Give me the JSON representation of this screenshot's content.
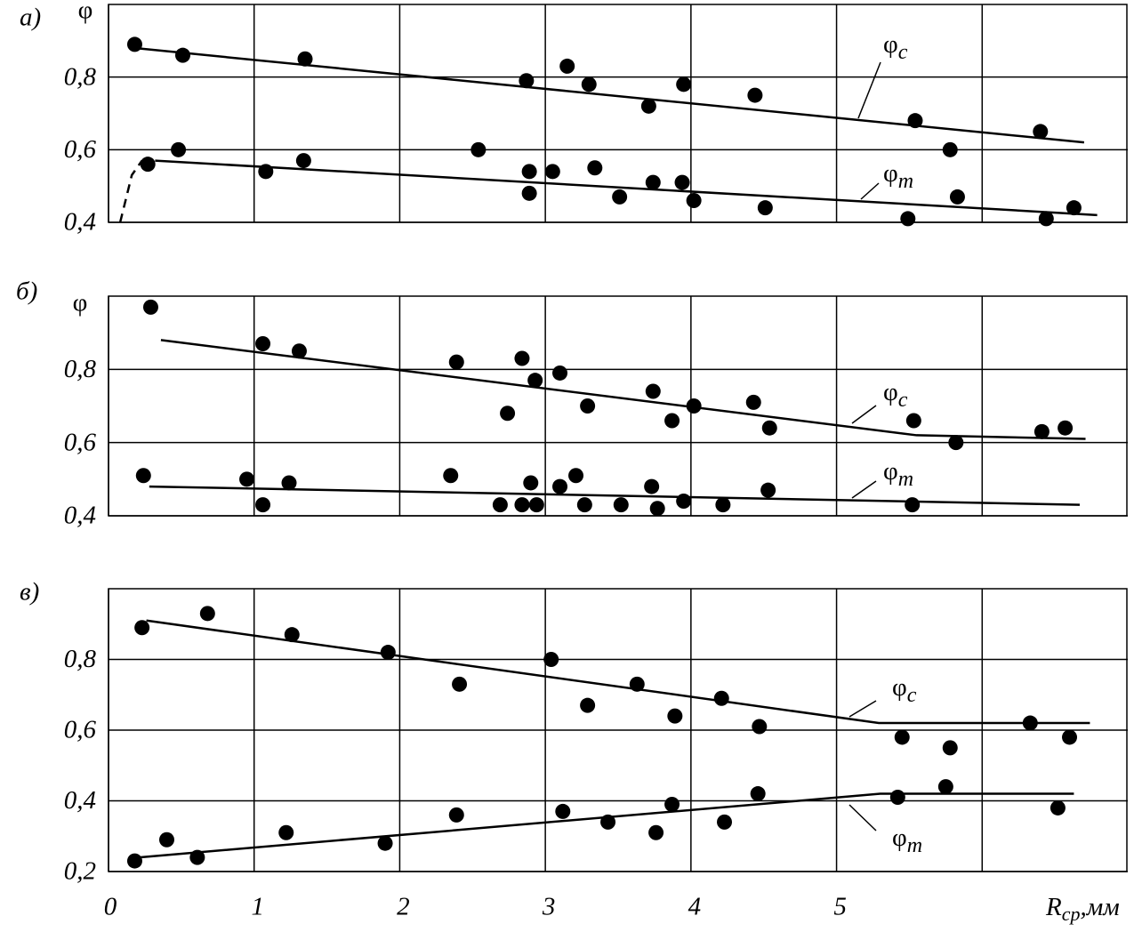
{
  "chart_data": [
    {
      "type": "scatter",
      "panel_label": "а)",
      "ylabel": "φ",
      "xlim": [
        0,
        7
      ],
      "xticks": [
        0,
        1,
        2,
        3,
        4,
        5,
        {
          "value": 6,
          "label": null
        }
      ],
      "ylim": [
        0.4,
        1.0
      ],
      "yticks": [
        {
          "value": 0.4,
          "label": "0,4"
        },
        {
          "value": 0.6,
          "label": "0,6"
        },
        {
          "value": 0.8,
          "label": "0,8"
        }
      ],
      "grid": true,
      "series": [
        {
          "name": "φ",
          "subscript": "c",
          "color": "#000000",
          "x": [
            0.18,
            0.51,
            1.35,
            2.87,
            3.15,
            3.3,
            3.71,
            3.95,
            4.44,
            5.54,
            5.78,
            6.4
          ],
          "values": [
            0.89,
            0.86,
            0.85,
            0.79,
            0.83,
            0.78,
            0.72,
            0.78,
            0.75,
            0.68,
            0.6,
            0.65
          ],
          "trend": {
            "x": [
              0.18,
              6.7
            ],
            "values": [
              0.88,
              0.62
            ]
          }
        },
        {
          "name": "φ",
          "subscript": "m",
          "color": "#000000",
          "x": [
            0.27,
            0.48,
            1.08,
            1.34,
            2.54,
            2.89,
            2.89,
            3.05,
            3.34,
            3.51,
            3.74,
            3.94,
            4.02,
            4.51,
            5.49,
            5.83,
            6.44,
            6.63
          ],
          "values": [
            0.56,
            0.6,
            0.54,
            0.57,
            0.6,
            0.54,
            0.48,
            0.54,
            0.55,
            0.47,
            0.51,
            0.51,
            0.46,
            0.44,
            0.41,
            0.47,
            0.41,
            0.44
          ],
          "trend": {
            "x": [
              0.32,
              6.79
            ],
            "values": [
              0.57,
              0.42
            ]
          },
          "dashed": {
            "x": [
              0.08,
              0.16,
              0.23
            ],
            "values": [
              0.4,
              0.53,
              0.57
            ]
          }
        }
      ]
    },
    {
      "type": "scatter",
      "panel_label": "б)",
      "ylabel": "φ",
      "xlim": [
        0,
        7
      ],
      "xticks": [
        0,
        1,
        2,
        3,
        4,
        5,
        {
          "value": 6,
          "label": null
        }
      ],
      "ylim": [
        0.4,
        1.0
      ],
      "yticks": [
        {
          "value": 0.4,
          "label": "0,4"
        },
        {
          "value": 0.6,
          "label": "0,6"
        },
        {
          "value": 0.8,
          "label": "0,8"
        }
      ],
      "grid": true,
      "series": [
        {
          "name": "φ",
          "subscript": "c",
          "color": "#000000",
          "x": [
            0.29,
            1.06,
            1.31,
            2.39,
            2.74,
            2.84,
            2.93,
            3.1,
            3.29,
            3.74,
            3.87,
            4.02,
            4.43,
            4.54,
            5.53,
            5.82,
            6.41,
            6.57
          ],
          "values": [
            0.97,
            0.87,
            0.85,
            0.82,
            0.68,
            0.83,
            0.77,
            0.79,
            0.7,
            0.74,
            0.66,
            0.7,
            0.71,
            0.64,
            0.66,
            0.6,
            0.63,
            0.64
          ],
          "trend": {
            "x": [
              0.36,
              5.55,
              6.71
            ],
            "values": [
              0.88,
              0.62,
              0.61
            ]
          }
        },
        {
          "name": "φ",
          "subscript": "m",
          "color": "#000000",
          "x": [
            0.24,
            0.95,
            1.06,
            1.24,
            2.35,
            2.69,
            2.84,
            2.9,
            2.94,
            3.1,
            3.21,
            3.27,
            3.52,
            3.73,
            3.77,
            3.95,
            4.22,
            4.53,
            5.52
          ],
          "values": [
            0.51,
            0.5,
            0.43,
            0.49,
            0.51,
            0.43,
            0.43,
            0.49,
            0.43,
            0.48,
            0.51,
            0.43,
            0.43,
            0.48,
            0.42,
            0.44,
            0.43,
            0.47,
            0.43
          ],
          "trend": {
            "x": [
              0.28,
              6.67
            ],
            "values": [
              0.48,
              0.43
            ]
          }
        }
      ]
    },
    {
      "type": "scatter",
      "panel_label": "в)",
      "xlim": [
        0,
        7
      ],
      "xticks": [
        0,
        1,
        2,
        3,
        4,
        5,
        {
          "value": 6,
          "label": null
        }
      ],
      "xlabel": {
        "text": "R",
        "sub": "ср",
        "unit": ",мм"
      },
      "ylim": [
        0.2,
        1.0
      ],
      "yticks": [
        {
          "value": 0.2,
          "label": "0,2"
        },
        {
          "value": 0.4,
          "label": "0,4"
        },
        {
          "value": 0.6,
          "label": "0,6"
        },
        {
          "value": 0.8,
          "label": "0,8"
        }
      ],
      "grid": true,
      "series": [
        {
          "name": "φ",
          "subscript": "c",
          "color": "#000000",
          "x": [
            0.23,
            0.68,
            1.26,
            1.92,
            2.41,
            3.04,
            3.29,
            3.63,
            3.89,
            4.21,
            4.47,
            5.45,
            5.78,
            6.33,
            6.6
          ],
          "values": [
            0.89,
            0.93,
            0.87,
            0.82,
            0.73,
            0.8,
            0.67,
            0.73,
            0.64,
            0.69,
            0.61,
            0.58,
            0.55,
            0.62,
            0.58
          ],
          "trend": {
            "x": [
              0.26,
              5.29,
              6.74
            ],
            "values": [
              0.91,
              0.62,
              0.62
            ]
          }
        },
        {
          "name": "φ",
          "subscript": "m",
          "color": "#000000",
          "x": [
            0.18,
            0.4,
            0.61,
            1.22,
            1.9,
            2.39,
            3.12,
            3.43,
            3.76,
            3.87,
            4.23,
            4.46,
            5.42,
            5.75,
            6.52
          ],
          "values": [
            0.23,
            0.29,
            0.24,
            0.31,
            0.28,
            0.36,
            0.37,
            0.34,
            0.31,
            0.39,
            0.34,
            0.42,
            0.41,
            0.44,
            0.38
          ],
          "trend": {
            "x": [
              0.21,
              5.3,
              6.63
            ],
            "values": [
              0.24,
              0.42,
              0.42
            ]
          }
        }
      ]
    }
  ]
}
